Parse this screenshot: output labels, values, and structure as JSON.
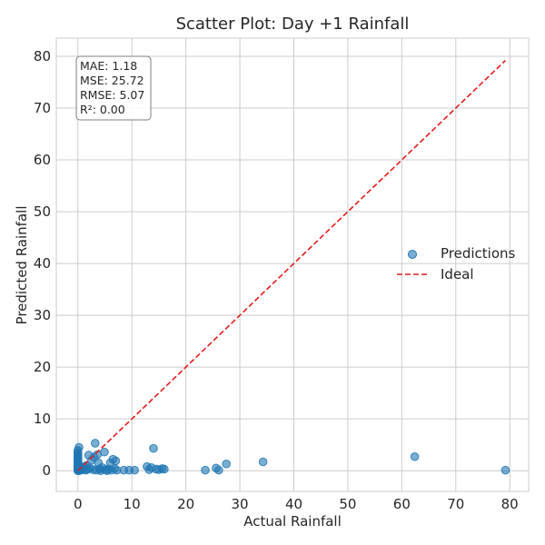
{
  "chart_data": {
    "type": "scatter",
    "title": "Scatter Plot: Day +1 Rainfall",
    "xlabel": "Actual Rainfall",
    "ylabel": "Predicted Rainfall",
    "xlim": [
      -4,
      83.5
    ],
    "ylim": [
      -4,
      83.5
    ],
    "xticks": [
      0,
      10,
      20,
      30,
      40,
      50,
      60,
      70,
      80
    ],
    "yticks": [
      0,
      10,
      20,
      30,
      40,
      50,
      60,
      70,
      80
    ],
    "grid": true,
    "legend_position": "center-right",
    "stats_box": {
      "position": "top-left",
      "lines": [
        "MAE: 1.18",
        "MSE: 25.72",
        "RMSE: 5.07",
        "R²: 0.00"
      ]
    },
    "series": [
      {
        "name": "Predictions",
        "kind": "scatter",
        "color": "#1f77b4",
        "points": [
          [
            0,
            0
          ],
          [
            0,
            0.1
          ],
          [
            0,
            0.2
          ],
          [
            0,
            0.3
          ],
          [
            0,
            0.5
          ],
          [
            0,
            0.8
          ],
          [
            0,
            1.0
          ],
          [
            0,
            1.2
          ],
          [
            0,
            1.5
          ],
          [
            0,
            1.8
          ],
          [
            0,
            2.0
          ],
          [
            0,
            2.3
          ],
          [
            0,
            2.6
          ],
          [
            0,
            2.9
          ],
          [
            0,
            3.2
          ],
          [
            0,
            3.5
          ],
          [
            0,
            3.9
          ],
          [
            0.2,
            4.5
          ],
          [
            0.1,
            0.6
          ],
          [
            0.2,
            0.0
          ],
          [
            0.3,
            0.2
          ],
          [
            0.4,
            0.4
          ],
          [
            0.5,
            0.1
          ],
          [
            0.6,
            0.3
          ],
          [
            0.8,
            0.5
          ],
          [
            1.0,
            0.2
          ],
          [
            1.2,
            0.8
          ],
          [
            1.5,
            0.1
          ],
          [
            1.6,
            1.0
          ],
          [
            1.8,
            0.3
          ],
          [
            2.0,
            3.0
          ],
          [
            2.2,
            0.5
          ],
          [
            2.5,
            2.0
          ],
          [
            2.8,
            0.2
          ],
          [
            3.0,
            2.6
          ],
          [
            3.2,
            5.3
          ],
          [
            3.4,
            0.1
          ],
          [
            3.6,
            3.1
          ],
          [
            3.8,
            1.5
          ],
          [
            4.0,
            0.3
          ],
          [
            4.2,
            0.0
          ],
          [
            4.5,
            0.6
          ],
          [
            4.9,
            3.6
          ],
          [
            5.1,
            0.2
          ],
          [
            5.4,
            0.0
          ],
          [
            5.7,
            0.3
          ],
          [
            6.0,
            1.5
          ],
          [
            6.2,
            0.1
          ],
          [
            6.5,
            2.2
          ],
          [
            6.8,
            0.4
          ],
          [
            7.0,
            1.9
          ],
          [
            7.2,
            0.1
          ],
          [
            8.5,
            0.1
          ],
          [
            9.5,
            0.1
          ],
          [
            10.5,
            0.1
          ],
          [
            12.8,
            0.8
          ],
          [
            13.2,
            0.2
          ],
          [
            13.6,
            0.6
          ],
          [
            14.0,
            4.3
          ],
          [
            14.5,
            0.3
          ],
          [
            15.0,
            0.2
          ],
          [
            15.6,
            0.4
          ],
          [
            16.0,
            0.3
          ],
          [
            23.6,
            0.1
          ],
          [
            25.6,
            0.5
          ],
          [
            26.1,
            0.1
          ],
          [
            27.5,
            1.3
          ],
          [
            34.3,
            1.7
          ],
          [
            62.4,
            2.7
          ],
          [
            79.2,
            0.1
          ]
        ]
      },
      {
        "name": "Ideal",
        "kind": "line",
        "style": "dashed",
        "color": "#e31a1c",
        "points": [
          [
            0,
            0
          ],
          [
            79.2,
            79.2
          ]
        ]
      }
    ]
  }
}
